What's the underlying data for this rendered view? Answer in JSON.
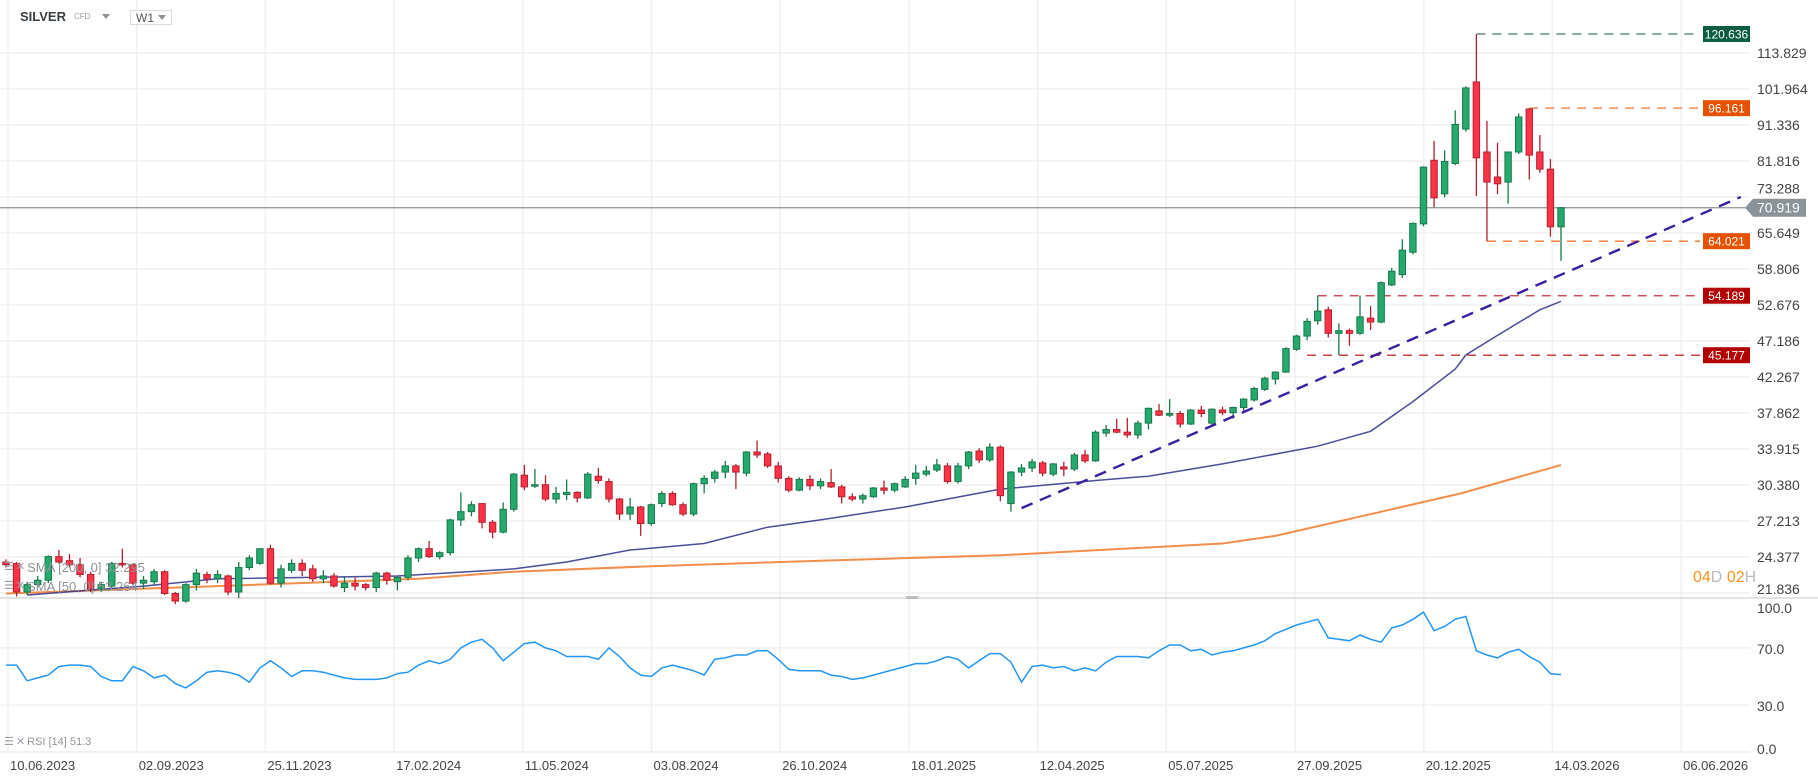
{
  "header": {
    "symbol": "SILVER",
    "instrument_type": "CFD",
    "timeframe": "W1"
  },
  "countdown": {
    "days": "04",
    "days_unit": "D",
    "hours": "02",
    "hours_unit": "H"
  },
  "legends": {
    "sma200": "SMA [200, 0] 32.295",
    "sma50": "SMA [50, 0] 53.264",
    "rsi": "RSI [14] 51.3"
  },
  "colors": {
    "up": "#26a96c",
    "up_border": "#177a4c",
    "down": "#ff3347",
    "down_border": "#b3202f",
    "sma50": "#2b2f86",
    "sma200": "#f07a2c",
    "trendline": "#3a1fa0",
    "rsi": "#2196f3",
    "current_price": "#8a9399",
    "grid": "#f0f0f0"
  },
  "chart_data": {
    "type": "candlestick",
    "price_scale": "log",
    "grid": true,
    "yticks": [
      "113.829",
      "101.964",
      "91.336",
      "81.816",
      "73.288",
      "65.649",
      "58.806",
      "52.676",
      "47.186",
      "42.267",
      "37.862",
      "33.915",
      "30.380",
      "27.213",
      "24.377",
      "21.836"
    ],
    "xticks": [
      "10.06.2023",
      "02.09.2023",
      "25.11.2023",
      "17.02.2024",
      "11.05.2024",
      "03.08.2024",
      "26.10.2024",
      "18.01.2025",
      "12.04.2025",
      "05.07.2025",
      "27.09.2025",
      "20.12.2025",
      "14.03.2026",
      "06.06.2026"
    ],
    "ohlc": [
      [
        24.0,
        24.2,
        23.6,
        23.8
      ],
      [
        23.9,
        24.0,
        21.6,
        21.9
      ],
      [
        21.9,
        22.6,
        21.7,
        22.4
      ],
      [
        22.4,
        23.0,
        22.2,
        22.7
      ],
      [
        22.7,
        24.5,
        22.5,
        24.4
      ],
      [
        24.4,
        24.9,
        23.9,
        24.0
      ],
      [
        24.1,
        24.6,
        23.6,
        23.8
      ],
      [
        23.8,
        24.3,
        22.9,
        23.1
      ],
      [
        23.1,
        23.3,
        21.9,
        22.1
      ],
      [
        22.1,
        22.6,
        21.9,
        22.4
      ],
      [
        22.3,
        24.0,
        22.2,
        23.9
      ],
      [
        23.9,
        25.0,
        23.6,
        23.8
      ],
      [
        23.8,
        23.9,
        22.4,
        22.5
      ],
      [
        22.5,
        23.0,
        22.1,
        22.7
      ],
      [
        22.6,
        23.5,
        22.4,
        23.3
      ],
      [
        23.3,
        23.4,
        21.7,
        21.8
      ],
      [
        21.8,
        21.9,
        21.1,
        21.3
      ],
      [
        21.3,
        22.5,
        21.2,
        22.4
      ],
      [
        22.4,
        23.5,
        22.0,
        23.2
      ],
      [
        23.1,
        23.3,
        22.5,
        22.8
      ],
      [
        22.8,
        23.4,
        22.5,
        23.1
      ],
      [
        23.0,
        23.1,
        21.7,
        21.9
      ],
      [
        21.9,
        24.0,
        21.5,
        23.6
      ],
      [
        23.6,
        24.5,
        23.4,
        24.3
      ],
      [
        23.9,
        25.0,
        23.8,
        25.0
      ],
      [
        25.0,
        25.3,
        22.4,
        22.5
      ],
      [
        22.5,
        23.8,
        22.2,
        23.5
      ],
      [
        23.4,
        24.2,
        23.2,
        23.9
      ],
      [
        23.9,
        24.2,
        23.0,
        23.4
      ],
      [
        23.5,
        23.8,
        22.6,
        22.8
      ],
      [
        22.8,
        23.4,
        22.5,
        23.0
      ],
      [
        23.0,
        23.2,
        22.2,
        22.3
      ],
      [
        22.2,
        22.9,
        21.9,
        22.5
      ],
      [
        22.5,
        22.9,
        22.0,
        22.3
      ],
      [
        22.4,
        22.5,
        22.0,
        22.2
      ],
      [
        22.2,
        23.3,
        21.9,
        23.2
      ],
      [
        23.2,
        23.3,
        22.4,
        22.7
      ],
      [
        22.6,
        23.0,
        22.0,
        22.9
      ],
      [
        22.9,
        24.5,
        22.7,
        24.3
      ],
      [
        24.3,
        25.1,
        24.0,
        25.0
      ],
      [
        25.0,
        25.6,
        24.3,
        24.4
      ],
      [
        24.4,
        24.8,
        24.2,
        24.7
      ],
      [
        24.7,
        27.4,
        24.5,
        27.3
      ],
      [
        27.3,
        29.7,
        26.8,
        28.0
      ],
      [
        28.0,
        28.9,
        27.6,
        28.6
      ],
      [
        28.7,
        28.7,
        26.6,
        27.1
      ],
      [
        27.1,
        27.3,
        25.8,
        26.3
      ],
      [
        26.3,
        28.8,
        26.2,
        28.2
      ],
      [
        28.2,
        31.5,
        28.0,
        31.4
      ],
      [
        31.3,
        32.3,
        29.9,
        30.2
      ],
      [
        30.3,
        31.9,
        30.1,
        30.4
      ],
      [
        30.4,
        31.3,
        28.9,
        29.1
      ],
      [
        29.1,
        30.2,
        28.7,
        29.6
      ],
      [
        29.5,
        30.9,
        29.0,
        29.7
      ],
      [
        29.7,
        29.8,
        28.8,
        29.2
      ],
      [
        29.2,
        31.6,
        29.1,
        31.4
      ],
      [
        31.2,
        32.0,
        30.5,
        30.8
      ],
      [
        30.7,
        31.0,
        28.8,
        29.1
      ],
      [
        29.1,
        29.2,
        27.3,
        27.8
      ],
      [
        27.8,
        29.2,
        27.3,
        28.4
      ],
      [
        28.4,
        28.5,
        26.0,
        27.0
      ],
      [
        27.0,
        28.7,
        26.8,
        28.6
      ],
      [
        28.7,
        29.8,
        28.4,
        29.6
      ],
      [
        29.6,
        29.8,
        28.5,
        28.6
      ],
      [
        28.6,
        28.8,
        27.6,
        27.8
      ],
      [
        27.8,
        30.6,
        27.6,
        30.5
      ],
      [
        30.5,
        31.3,
        29.6,
        31.0
      ],
      [
        31.0,
        31.8,
        30.6,
        31.6
      ],
      [
        31.6,
        32.7,
        31.0,
        32.2
      ],
      [
        32.2,
        32.4,
        30.0,
        31.6
      ],
      [
        31.5,
        33.7,
        31.2,
        33.6
      ],
      [
        33.6,
        34.8,
        33.0,
        33.3
      ],
      [
        33.4,
        33.6,
        32.0,
        32.2
      ],
      [
        32.2,
        32.6,
        30.6,
        31.0
      ],
      [
        31.0,
        31.2,
        29.7,
        29.9
      ],
      [
        29.9,
        31.1,
        29.8,
        30.9
      ],
      [
        30.9,
        31.3,
        29.9,
        30.3
      ],
      [
        30.3,
        31.0,
        30.0,
        30.7
      ],
      [
        30.6,
        31.9,
        30.1,
        30.2
      ],
      [
        30.2,
        30.4,
        28.7,
        29.3
      ],
      [
        29.3,
        29.6,
        28.9,
        29.1
      ],
      [
        29.1,
        29.6,
        28.7,
        29.4
      ],
      [
        29.3,
        30.2,
        29.2,
        30.1
      ],
      [
        30.1,
        30.8,
        29.5,
        29.9
      ],
      [
        29.9,
        30.6,
        29.7,
        30.5
      ],
      [
        30.2,
        31.2,
        30.1,
        30.9
      ],
      [
        31.0,
        32.3,
        30.4,
        31.5
      ],
      [
        31.4,
        32.2,
        31.2,
        31.7
      ],
      [
        31.8,
        32.9,
        31.6,
        32.3
      ],
      [
        32.2,
        32.5,
        30.5,
        30.7
      ],
      [
        30.7,
        32.5,
        30.5,
        32.2
      ],
      [
        32.2,
        33.7,
        31.9,
        33.6
      ],
      [
        33.7,
        34.0,
        32.5,
        32.8
      ],
      [
        32.8,
        34.5,
        32.6,
        34.1
      ],
      [
        34.1,
        34.3,
        28.9,
        29.4
      ],
      [
        28.7,
        31.7,
        28.0,
        31.6
      ],
      [
        31.6,
        32.4,
        31.2,
        32.0
      ],
      [
        32.0,
        32.9,
        31.6,
        32.6
      ],
      [
        32.5,
        32.7,
        31.2,
        31.5
      ],
      [
        31.4,
        32.5,
        31.2,
        32.4
      ],
      [
        32.1,
        32.6,
        31.2,
        31.9
      ],
      [
        31.9,
        33.5,
        31.7,
        33.3
      ],
      [
        33.3,
        33.8,
        32.5,
        32.7
      ],
      [
        32.7,
        35.9,
        32.6,
        35.7
      ],
      [
        35.6,
        36.5,
        35.2,
        36.0
      ],
      [
        36.0,
        37.2,
        35.6,
        35.7
      ],
      [
        35.7,
        37.3,
        35.1,
        35.4
      ],
      [
        35.4,
        37.0,
        35.0,
        36.7
      ],
      [
        36.7,
        38.5,
        36.0,
        38.4
      ],
      [
        38.1,
        38.9,
        37.5,
        37.6
      ],
      [
        37.6,
        39.5,
        37.4,
        37.8
      ],
      [
        37.8,
        38.1,
        36.2,
        36.6
      ],
      [
        36.6,
        38.3,
        36.5,
        38.2
      ],
      [
        38.2,
        38.7,
        37.4,
        37.8
      ],
      [
        36.7,
        38.4,
        36.3,
        38.3
      ],
      [
        38.2,
        38.6,
        37.6,
        37.9
      ],
      [
        37.9,
        38.6,
        37.2,
        38.5
      ],
      [
        38.5,
        39.6,
        38.0,
        39.5
      ],
      [
        39.4,
        41.0,
        39.2,
        40.8
      ],
      [
        40.7,
        42.3,
        40.5,
        42.1
      ],
      [
        42.0,
        43.0,
        41.3,
        42.9
      ],
      [
        42.9,
        46.3,
        42.8,
        46.1
      ],
      [
        46.0,
        48.1,
        45.8,
        47.9
      ],
      [
        47.9,
        50.6,
        47.3,
        50.1
      ],
      [
        50.2,
        54.2,
        49.6,
        51.7
      ],
      [
        51.9,
        52.4,
        47.7,
        48.3
      ],
      [
        48.3,
        49.8,
        45.2,
        48.7
      ],
      [
        48.7,
        49.0,
        46.5,
        48.3
      ],
      [
        48.3,
        54.2,
        48.1,
        50.8
      ],
      [
        50.6,
        52.5,
        48.8,
        50.0
      ],
      [
        50.0,
        56.6,
        49.8,
        56.4
      ],
      [
        56.0,
        59.0,
        55.8,
        58.4
      ],
      [
        57.8,
        64.4,
        57.2,
        62.3
      ],
      [
        61.9,
        67.8,
        61.5,
        67.6
      ],
      [
        67.5,
        80.5,
        67.0,
        80.3
      ],
      [
        82.0,
        87.0,
        71.0,
        73.1
      ],
      [
        74.0,
        84.5,
        73.2,
        81.7
      ],
      [
        81.2,
        95.5,
        80.8,
        91.5
      ],
      [
        90.2,
        102.8,
        89.5,
        102.3
      ],
      [
        104.2,
        120.636,
        73.5,
        82.6
      ],
      [
        84.1,
        92.5,
        64.021,
        76.7
      ],
      [
        77.9,
        86.5,
        73.9,
        76.3
      ],
      [
        76.7,
        84.1,
        71.8,
        84.1
      ],
      [
        84.1,
        94.6,
        83.6,
        93.6
      ],
      [
        95.9,
        96.161,
        77.3,
        83.3
      ],
      [
        84.1,
        88.6,
        78.9,
        79.8
      ],
      [
        79.8,
        82.3,
        64.9,
        66.9
      ],
      [
        66.9,
        70.919,
        60.3,
        70.919
      ]
    ],
    "indicators": [
      {
        "name": "SMA [200, 0]",
        "value": 32.295,
        "points": [
          [
            0,
            21.8
          ],
          [
            20,
            22.3
          ],
          [
            39,
            22.8
          ],
          [
            48,
            23.3
          ],
          [
            61,
            23.7
          ],
          [
            77,
            24.1
          ],
          [
            94,
            24.5
          ],
          [
            115,
            25.4
          ],
          [
            120,
            26.0
          ],
          [
            131,
            28.2
          ],
          [
            137.5,
            29.6
          ],
          [
            147,
            32.295
          ]
        ]
      },
      {
        "name": "SMA [50, 0]",
        "value": 53.264,
        "points": [
          [
            2,
            21.7
          ],
          [
            13,
            22.3
          ],
          [
            20,
            22.8
          ],
          [
            37,
            23.0
          ],
          [
            48,
            23.5
          ],
          [
            53,
            24.0
          ],
          [
            59,
            24.9
          ],
          [
            66,
            25.4
          ],
          [
            72,
            26.7
          ],
          [
            77,
            27.3
          ],
          [
            85,
            28.4
          ],
          [
            94,
            30.0
          ],
          [
            103,
            30.8
          ],
          [
            108,
            31.2
          ],
          [
            115,
            32.4
          ],
          [
            124,
            34.2
          ],
          [
            129,
            35.8
          ],
          [
            133,
            39.2
          ],
          [
            137,
            43.3
          ],
          [
            138,
            45.2
          ],
          [
            141,
            48.0
          ],
          [
            145,
            51.9
          ],
          [
            147,
            53.264
          ]
        ]
      }
    ],
    "trendline": {
      "from": [
        96,
        28.3
      ],
      "to": [
        164,
        73.3
      ],
      "style": "dashed"
    },
    "levels": [
      {
        "label": "120.636",
        "price": 120.636,
        "from": 139,
        "color": "#0b5d3f"
      },
      {
        "label": "96.161",
        "price": 96.161,
        "from": 144,
        "color": "#e65100"
      },
      {
        "label": "64.021",
        "price": 64.021,
        "from": 140,
        "color": "#e65100"
      },
      {
        "label": "54.189",
        "price": 54.189,
        "from": 124,
        "color": "#b30000"
      },
      {
        "label": "45.177",
        "price": 45.177,
        "from": 123,
        "color": "#b30000"
      }
    ],
    "current_price": {
      "label": "70.919",
      "value": 70.919
    },
    "rsi": {
      "period": 14,
      "value": 51.3,
      "yticks": [
        "100.0",
        "70.0",
        "30.0",
        "0.0"
      ],
      "values": [
        58,
        58,
        47,
        49,
        51,
        57,
        58,
        58,
        57,
        50,
        47,
        47,
        57,
        54,
        49,
        51,
        45,
        42,
        47,
        53,
        54,
        53,
        51,
        46,
        56,
        61,
        56,
        50,
        54,
        54,
        53,
        51,
        49,
        48,
        48,
        48,
        49,
        52,
        53,
        58,
        61,
        59,
        62,
        70,
        74,
        76,
        70,
        61,
        67,
        73,
        74,
        70,
        68,
        64,
        64,
        64,
        62,
        70,
        64,
        56,
        51,
        50,
        56,
        58,
        56,
        54,
        51,
        62,
        63,
        65,
        65,
        68,
        68,
        62,
        55,
        54,
        54,
        54,
        51,
        50,
        48,
        49,
        51,
        53,
        55,
        57,
        59,
        59,
        61,
        64,
        62,
        56,
        61,
        66,
        66,
        60,
        46,
        57,
        58,
        56,
        57,
        54,
        56,
        54,
        60,
        64,
        64,
        64,
        63,
        68,
        72,
        72,
        68,
        69,
        65,
        67,
        68,
        70,
        72,
        75,
        80,
        83,
        86,
        88,
        90,
        77,
        76,
        75,
        79,
        76,
        74,
        84,
        86,
        90,
        95,
        82,
        85,
        90,
        92,
        68,
        65,
        63,
        67,
        69,
        64,
        60,
        52,
        51.3
      ]
    }
  }
}
